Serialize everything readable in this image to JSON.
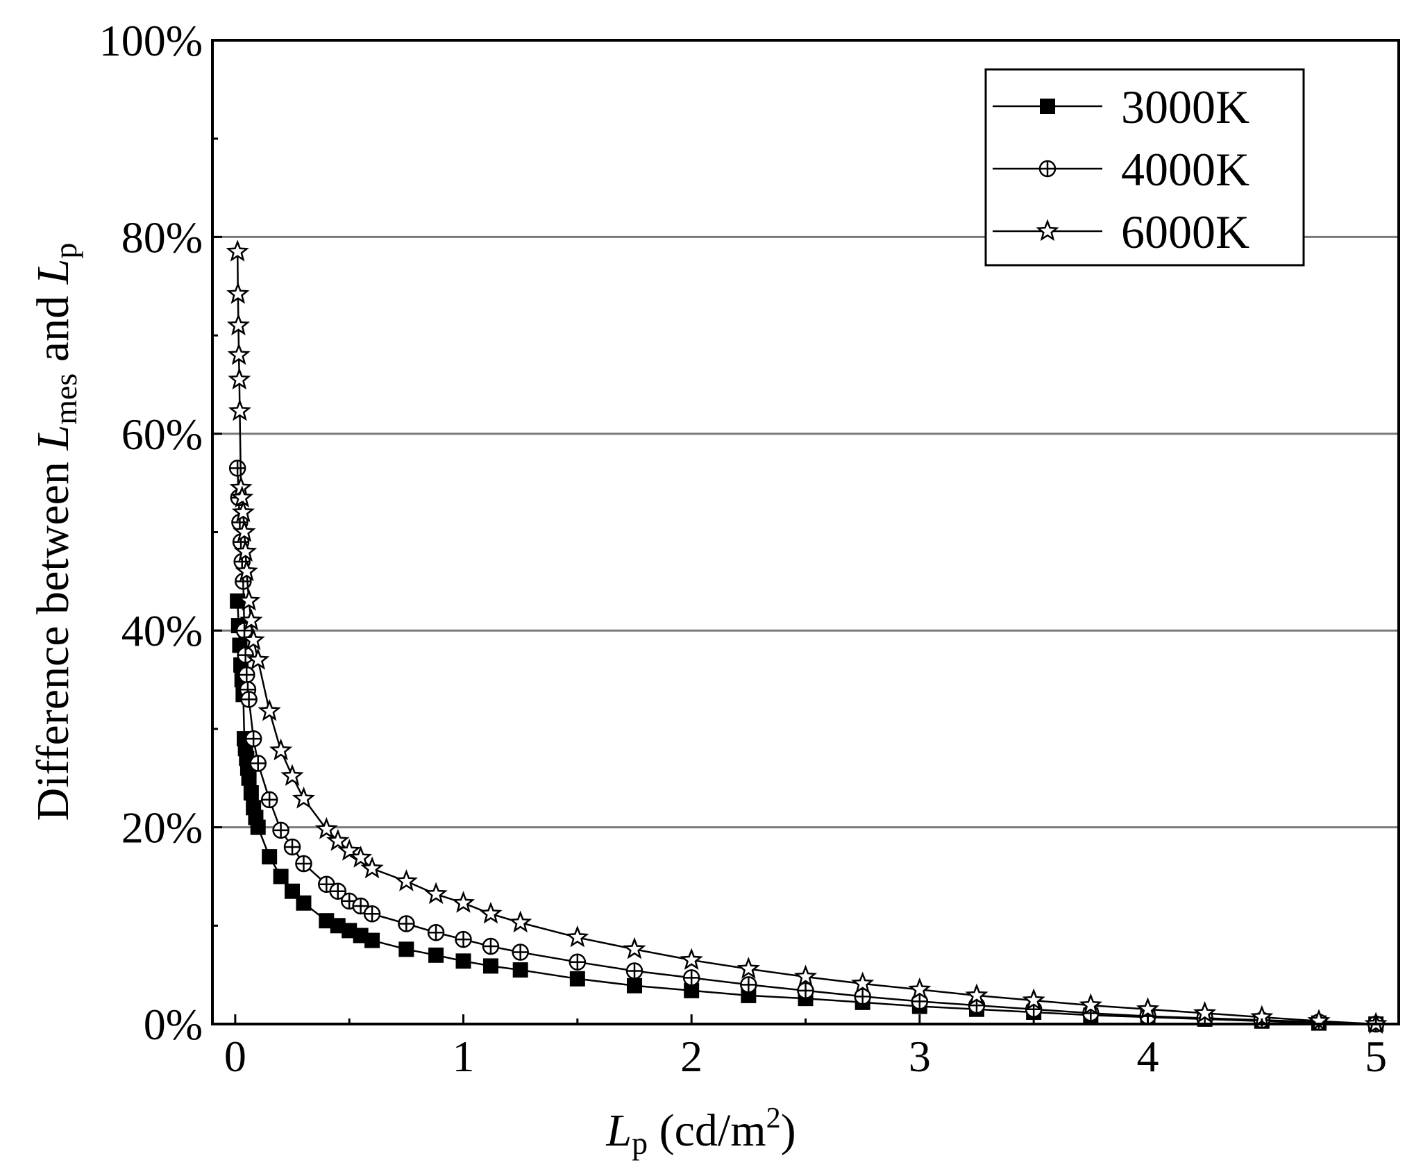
{
  "chart_data": {
    "type": "line",
    "title": "",
    "xlabel": {
      "var": "L",
      "sub": "p",
      "unit_pre": " (cd/m",
      "unit_sup": "2",
      "unit_post": ")"
    },
    "ylabel": {
      "pre": "Difference between ",
      "var1": "L",
      "sub1": "mes",
      "mid": " and ",
      "var2": "L",
      "sub2": "p"
    },
    "xlim": [
      -0.1,
      5.1
    ],
    "ylim": [
      0,
      100
    ],
    "x_ticks": [
      0,
      1,
      2,
      3,
      4,
      5
    ],
    "x_tick_labels": [
      "0",
      "1",
      "2",
      "3",
      "4",
      "5"
    ],
    "y_ticks": [
      0,
      20,
      40,
      60,
      80,
      100
    ],
    "y_tick_labels": [
      "0%",
      "20%",
      "40%",
      "60%",
      "80%",
      "100%"
    ],
    "grid": {
      "horizontal": true,
      "vertical": false,
      "lines_at": [
        20,
        40,
        60,
        80
      ]
    },
    "legend": {
      "position": "top-right"
    },
    "series": [
      {
        "name": "3000K",
        "marker": "filled-square",
        "x": [
          0.01,
          0.015,
          0.02,
          0.025,
          0.03,
          0.035,
          0.04,
          0.045,
          0.05,
          0.055,
          0.06,
          0.07,
          0.08,
          0.09,
          0.1,
          0.15,
          0.2,
          0.25,
          0.3,
          0.4,
          0.45,
          0.5,
          0.55,
          0.6,
          0.75,
          0.88,
          1.0,
          1.12,
          1.25,
          1.5,
          1.75,
          2.0,
          2.25,
          2.5,
          2.75,
          3.0,
          3.25,
          3.5,
          3.75,
          4.0,
          4.25,
          4.5,
          4.75,
          5.0
        ],
        "y": [
          43,
          40.5,
          38.5,
          36.5,
          35,
          33.5,
          29,
          28,
          27,
          26,
          25,
          23.5,
          22,
          21,
          20,
          17,
          15,
          13.5,
          12.3,
          10.5,
          10,
          9.5,
          9,
          8.5,
          7.6,
          7,
          6.4,
          5.9,
          5.5,
          4.6,
          3.9,
          3.4,
          2.9,
          2.6,
          2.2,
          1.8,
          1.5,
          1.2,
          0.9,
          0.7,
          0.5,
          0.3,
          0.1,
          0
        ]
      },
      {
        "name": "4000K",
        "marker": "circle-plus",
        "x": [
          0.01,
          0.015,
          0.02,
          0.025,
          0.03,
          0.035,
          0.04,
          0.045,
          0.05,
          0.055,
          0.06,
          0.08,
          0.1,
          0.15,
          0.2,
          0.25,
          0.3,
          0.4,
          0.45,
          0.5,
          0.55,
          0.6,
          0.75,
          0.88,
          1.0,
          1.12,
          1.25,
          1.5,
          1.75,
          2.0,
          2.25,
          2.5,
          2.75,
          3.0,
          3.25,
          3.5,
          3.75,
          4.0,
          4.25,
          4.5,
          4.75,
          5.0
        ],
        "y": [
          56.5,
          53.5,
          51,
          49,
          47,
          45,
          40,
          37.5,
          35.5,
          34,
          33,
          29,
          26.5,
          22.8,
          19.7,
          18,
          16.3,
          14.2,
          13.5,
          12.5,
          12,
          11.2,
          10.2,
          9.3,
          8.6,
          7.9,
          7.3,
          6.3,
          5.4,
          4.7,
          4,
          3.4,
          2.8,
          2.3,
          1.9,
          1.5,
          1.1,
          0.8,
          0.6,
          0.4,
          0.2,
          0
        ]
      },
      {
        "name": "6000K",
        "marker": "star",
        "x": [
          0.01,
          0.012,
          0.014,
          0.016,
          0.018,
          0.02,
          0.025,
          0.03,
          0.035,
          0.04,
          0.045,
          0.05,
          0.06,
          0.07,
          0.08,
          0.1,
          0.15,
          0.2,
          0.25,
          0.3,
          0.4,
          0.45,
          0.5,
          0.55,
          0.6,
          0.75,
          0.88,
          1.0,
          1.12,
          1.25,
          1.5,
          1.75,
          2.0,
          2.25,
          2.5,
          2.75,
          3.0,
          3.25,
          3.5,
          3.75,
          4.0,
          4.25,
          4.5,
          4.75,
          5.0
        ],
        "y": [
          78.5,
          74.2,
          71,
          68,
          65.5,
          62.3,
          54.5,
          53.5,
          52,
          50,
          48,
          46,
          43,
          41,
          39,
          37,
          31.8,
          27.8,
          25.2,
          22.9,
          19.8,
          18.6,
          17.6,
          16.9,
          15.8,
          14.5,
          13.2,
          12.3,
          11.2,
          10.3,
          8.8,
          7.6,
          6.5,
          5.6,
          4.8,
          4.1,
          3.5,
          2.9,
          2.4,
          1.9,
          1.5,
          1.1,
          0.7,
          0.3,
          0
        ]
      }
    ]
  }
}
